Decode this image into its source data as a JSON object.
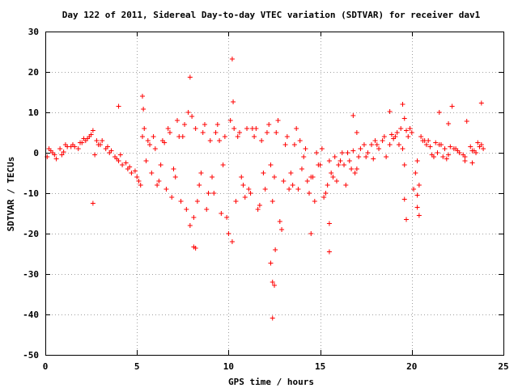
{
  "chart_data": {
    "type": "scatter",
    "title": "Day 122 of 2011, Sidereal Day-to-day VTEC variation (SDTVAR) for receiver dav1",
    "xlabel": "GPS time / hours",
    "ylabel": "SDTVAR / TECUs",
    "xlim": [
      0,
      25
    ],
    "ylim": [
      -50,
      30
    ],
    "xticks": [
      0,
      5,
      10,
      15,
      20,
      25
    ],
    "yticks": [
      -50,
      -40,
      -30,
      -20,
      -10,
      0,
      10,
      20,
      30
    ],
    "xtick_labels": [
      "0",
      "5",
      "10",
      "15",
      "20",
      "25"
    ],
    "ytick_labels": [
      "-50",
      "-40",
      "-30",
      "-20",
      "-10",
      "0",
      "10",
      "20",
      "30"
    ],
    "grid": true,
    "legend": "none",
    "marker": "+",
    "color": "#ff0000",
    "series": [
      {
        "x": [
          0.1,
          0.3,
          0.5,
          0.8,
          1.0,
          1.2,
          1.5,
          1.8,
          2.0,
          2.2,
          2.5,
          2.6,
          2.8,
          3.0,
          3.3,
          3.5,
          3.8,
          4.0,
          4.2,
          4.5,
          4.7,
          5.0,
          5.2,
          5.3,
          5.4,
          5.5,
          5.6,
          5.8,
          6.0,
          6.2,
          6.4,
          6.6,
          6.8,
          7.0,
          7.2,
          7.4,
          7.6,
          7.8,
          7.9,
          8.0,
          8.1,
          8.2,
          8.4,
          8.6,
          8.8,
          9.0,
          9.2,
          9.4,
          9.6,
          9.8,
          10.0,
          10.1,
          10.2,
          10.3,
          10.4,
          10.6,
          10.8,
          11.0,
          11.2,
          11.4,
          11.6,
          11.8,
          12.0,
          12.2,
          12.4,
          12.6,
          12.8,
          12.9,
          13.0,
          13.2,
          13.4,
          13.6,
          13.8,
          14.0,
          14.2,
          14.4,
          14.6,
          14.8,
          15.0,
          15.2,
          15.4,
          15.5,
          15.6,
          15.8,
          16.0,
          16.2,
          16.4,
          16.6,
          16.8,
          17.0,
          17.2,
          17.5,
          17.8,
          18.0,
          18.2,
          18.5,
          18.8,
          19.0,
          19.2,
          19.4,
          19.5,
          19.6,
          19.8,
          20.0,
          20.2,
          20.4,
          20.6,
          20.8,
          21.0,
          21.2,
          21.4,
          21.6,
          21.8,
          22.0,
          22.3,
          22.6,
          22.9,
          23.2,
          23.5,
          23.8,
          23.9,
          0.2,
          0.6,
          1.1,
          1.6,
          2.1,
          2.4,
          2.7,
          3.1,
          3.6,
          4.1,
          4.6,
          5.1,
          5.7,
          6.1,
          6.5,
          6.9,
          7.3,
          7.7,
          8.3,
          8.7,
          9.1,
          9.5,
          9.9,
          10.5,
          10.9,
          11.3,
          11.7,
          12.1,
          12.5,
          13.1,
          13.5,
          13.9,
          14.3,
          14.7,
          15.1,
          15.7,
          16.1,
          16.5,
          16.9,
          17.4,
          17.9,
          18.4,
          18.9,
          19.3,
          19.7,
          20.1,
          20.5,
          20.9,
          21.3,
          21.7,
          22.1,
          22.5,
          22.9,
          23.3,
          23.7,
          0.4,
          0.9,
          1.4,
          1.9,
          2.3,
          2.9,
          3.4,
          3.9,
          4.4,
          4.9,
          5.9,
          6.3,
          6.7,
          7.1,
          7.5,
          8.5,
          8.9,
          9.3,
          9.7,
          10.7,
          11.1,
          11.5,
          11.9,
          12.3,
          12.7,
          13.3,
          13.7,
          14.1,
          14.5,
          14.9,
          15.3,
          15.9,
          16.3,
          16.7,
          17.1,
          17.6,
          18.1,
          18.6,
          19.1,
          19.9,
          20.3,
          20.7,
          21.1,
          21.5,
          21.9,
          22.4,
          22.8,
          23.4,
          23.6,
          2.6,
          4.0,
          5.3,
          5.35,
          7.9,
          8.1,
          8.2,
          10.2,
          10.25,
          12.3,
          12.4,
          12.5,
          12.55,
          12.4,
          14.5,
          15.5,
          15.5,
          16.8,
          17.0,
          18.8,
          19.6,
          19.7,
          19.5,
          19.6,
          20.3,
          20.4,
          20.3,
          21.5,
          22.0,
          22.2,
          23.0,
          23.3,
          23.8
        ],
        "y": [
          -1.0,
          0.5,
          -0.5,
          1.0,
          0.2,
          1.5,
          2.0,
          1.0,
          2.5,
          3.0,
          4.5,
          5.5,
          3.0,
          2.0,
          1.0,
          0.0,
          -1.0,
          -2.0,
          -3.0,
          -4.0,
          -5.0,
          -6.0,
          -8.0,
          4.0,
          6.0,
          -2.0,
          3.0,
          -5.0,
          1.0,
          -7.0,
          3.0,
          -9.0,
          5.0,
          -4.0,
          8.0,
          -12.0,
          7.0,
          10.0,
          -18.0,
          9.0,
          -16.0,
          6.0,
          -8.0,
          5.0,
          -14.0,
          3.0,
          -10.0,
          7.0,
          -15.0,
          4.0,
          -20.0,
          8.0,
          -22.0,
          6.0,
          -12.0,
          5.0,
          -8.0,
          6.0,
          -10.0,
          4.0,
          -14.0,
          3.0,
          -9.0,
          7.0,
          -12.0,
          5.0,
          -17.0,
          -19.0,
          -7.0,
          4.0,
          -5.0,
          2.0,
          -9.0,
          -4.0,
          1.0,
          -10.0,
          -6.0,
          0.0,
          -3.0,
          -11.0,
          -8.0,
          -2.0,
          -5.0,
          -1.0,
          -3.0,
          0.0,
          -8.0,
          -2.0,
          0.5,
          -4.0,
          1.0,
          -1.0,
          2.0,
          3.0,
          1.0,
          4.0,
          2.0,
          3.5,
          5.0,
          6.0,
          1.0,
          -3.0,
          4.0,
          5.0,
          -5.0,
          -8.0,
          3.0,
          2.0,
          1.5,
          -1.0,
          0.0,
          2.0,
          1.0,
          -0.5,
          1.0,
          0.0,
          -1.0,
          1.5,
          0.0,
          2.0,
          1.0,
          1.0,
          -1.5,
          2.0,
          1.5,
          3.5,
          4.0,
          -0.5,
          3.0,
          0.5,
          -0.5,
          -3.5,
          -7.0,
          2.0,
          -8.0,
          2.5,
          -11.0,
          4.0,
          -14.0,
          -12.0,
          7.0,
          -6.0,
          3.0,
          -16.0,
          4.0,
          -11.0,
          6.0,
          -13.0,
          5.0,
          -6.0,
          2.0,
          -8.0,
          3.0,
          -7.0,
          -12.0,
          1.0,
          -6.0,
          -2.0,
          0.0,
          -5.0,
          2.0,
          -1.5,
          3.0,
          4.5,
          2.0,
          5.5,
          -9.0,
          4.0,
          3.0,
          2.5,
          -1.0,
          1.5,
          0.5,
          -2.0,
          0.5,
          1.5,
          0.0,
          -0.5,
          1.5,
          2.5,
          3.5,
          2.0,
          1.5,
          -1.5,
          -2.5,
          -4.5,
          4.0,
          -3.0,
          6.0,
          -6.0,
          4.0,
          -5.0,
          -10.0,
          5.0,
          -3.0,
          -6.0,
          -9.0,
          6.0,
          -5.0,
          -3.0,
          8.0,
          -9.0,
          6.0,
          -1.0,
          -6.0,
          -3.0,
          -10.0,
          -7.0,
          -3.0,
          -4.0,
          -1.0,
          0.0,
          2.0,
          -1.0,
          4.0,
          6.0,
          -2.0,
          3.0,
          -0.5,
          2.0,
          -1.5,
          1.0,
          -0.5,
          0.5,
          2.5,
          -12.5,
          11.5,
          14.0,
          10.8,
          18.7,
          -23.3,
          -23.6,
          23.2,
          12.6,
          -27.3,
          -32.0,
          -32.8,
          -24.0,
          -40.9,
          -20.0,
          -17.5,
          -24.5,
          9.2,
          5.0,
          10.2,
          -11.5,
          -16.5,
          12.0,
          8.5,
          -13.5,
          -15.5,
          -10.5,
          10.0,
          7.2,
          11.5,
          7.8,
          -2.5,
          12.3
        ]
      }
    ]
  }
}
